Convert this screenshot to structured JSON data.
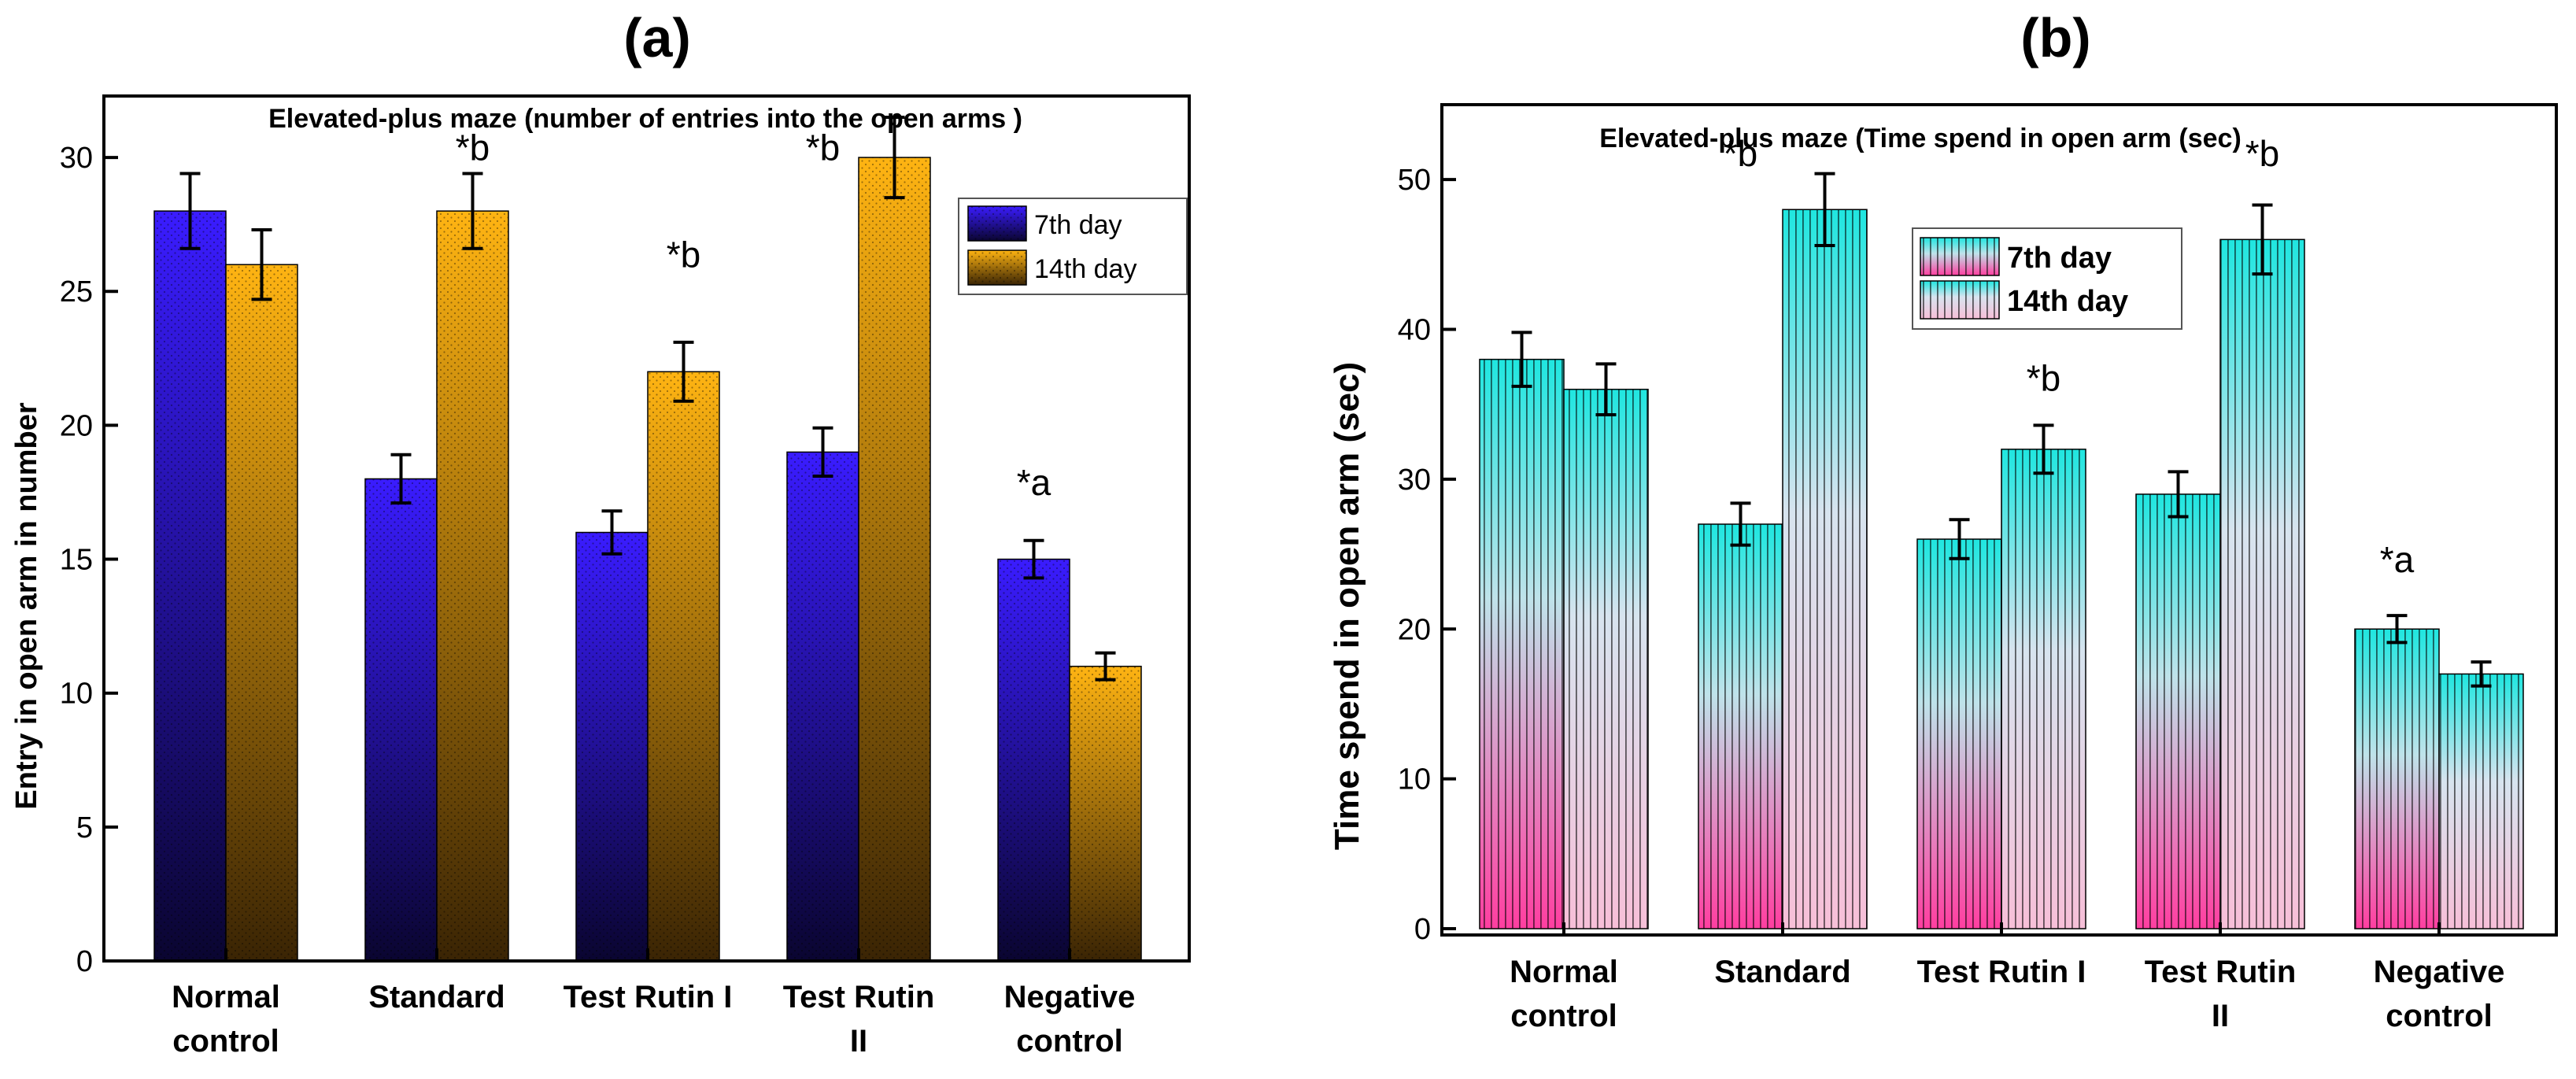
{
  "chart_data": [
    {
      "panel_label": "(a)",
      "type": "bar",
      "title": "Elevated-plus maze (number of entries into the open arms )",
      "xlabel": "",
      "ylabel": "Entry in open arm in number",
      "ylim": [
        0,
        32
      ],
      "yticks": [
        "0",
        "5",
        "10",
        "15",
        "20",
        "25",
        "30"
      ],
      "categories": [
        [
          "Normal",
          "control"
        ],
        [
          "Standard"
        ],
        [
          "Test Rutin I"
        ],
        [
          "Test Rutin",
          "II"
        ],
        [
          "Negative",
          "control"
        ]
      ],
      "series": [
        {
          "name": "7th day",
          "values": [
            28,
            18,
            16,
            19,
            15
          ],
          "errors": [
            1.4,
            0.9,
            0.8,
            0.9,
            0.7
          ],
          "colors": [
            "#3a1cff",
            "#0a0530"
          ]
        },
        {
          "name": "14th day",
          "values": [
            26,
            28,
            22,
            30,
            11
          ],
          "errors": [
            1.3,
            1.4,
            1.1,
            1.5,
            0.5
          ],
          "colors": [
            "#ffb412",
            "#3a2404"
          ]
        }
      ],
      "annotations": [
        {
          "text": "*b",
          "category": 1,
          "series": 1,
          "y": 29.9
        },
        {
          "text": "*b",
          "category": 2,
          "series": 1,
          "y": 25.9
        },
        {
          "text": "*b",
          "category": 3,
          "series": 0,
          "y": 29.9
        },
        {
          "text": "*a",
          "category": 4,
          "series": 0,
          "y": 17.4
        }
      ],
      "legend": "top-right"
    },
    {
      "panel_label": "(b)",
      "type": "bar",
      "title": "Elevated-plus maze (Time spend in open arm (sec)",
      "xlabel": "",
      "ylabel": "Time spend in open arm (sec)",
      "ylim": [
        0,
        55
      ],
      "yticks": [
        "0",
        "10",
        "20",
        "30",
        "40",
        "50"
      ],
      "categories": [
        [
          "Normal",
          "control"
        ],
        [
          "Standard"
        ],
        [
          "Test Rutin I"
        ],
        [
          "Test Rutin",
          "II"
        ],
        [
          "Negative",
          "control"
        ]
      ],
      "series": [
        {
          "name": "7th day",
          "values": [
            38,
            27,
            26,
            29,
            20
          ],
          "errors": [
            1.8,
            1.4,
            1.3,
            1.5,
            0.9
          ],
          "colors": [
            "#1fe6e0",
            "#ff3ea0"
          ]
        },
        {
          "name": "14th day",
          "values": [
            36,
            48,
            32,
            46,
            17
          ],
          "errors": [
            1.7,
            2.4,
            1.6,
            2.3,
            0.8
          ],
          "colors": [
            "#1fe6e0",
            "#f7bfd8"
          ]
        }
      ],
      "annotations": [
        {
          "text": "*b",
          "category": 1,
          "series": 0,
          "y": 50.9
        },
        {
          "text": "*b",
          "category": 2,
          "series": 1,
          "y": 35.9
        },
        {
          "text": "*b",
          "category": 3,
          "series": 1,
          "y": 50.9
        },
        {
          "text": "*a",
          "category": 4,
          "series": 0,
          "y": 23.8
        }
      ],
      "legend": "top-center"
    }
  ]
}
